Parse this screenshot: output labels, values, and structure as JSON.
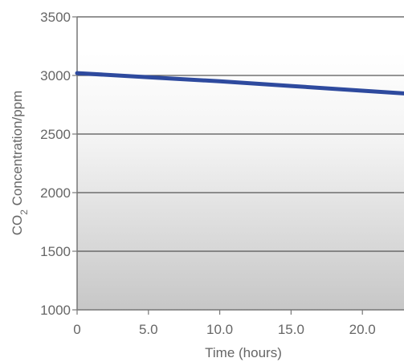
{
  "chart_data": {
    "type": "line",
    "title": "",
    "xlabel": "Time (hours)",
    "ylabel": {
      "prefix": "CO",
      "subscript": "2",
      "suffix": " Concentration/ppm"
    },
    "xlim": [
      0,
      25
    ],
    "ylim": [
      1000,
      3500
    ],
    "x_ticks": [
      0,
      5,
      10,
      15,
      20
    ],
    "x_tick_labels": [
      "0",
      "5.0",
      "10.0",
      "15.0",
      "20.0"
    ],
    "y_ticks": [
      1000,
      1500,
      2000,
      2500,
      3000,
      3500
    ],
    "y_tick_labels": [
      "1000",
      "1500",
      "2000",
      "2500",
      "3000",
      "3500"
    ],
    "grid": true,
    "series": [
      {
        "x": [
          0,
          5,
          10,
          15,
          20,
          25
        ],
        "y": [
          3020,
          2985,
          2950,
          2910,
          2870,
          2830
        ]
      }
    ],
    "colors": {
      "line": "#2e4a9e",
      "grid": "#555555",
      "axis": "#777777",
      "background_top": "#ffffff",
      "background_bottom": "#c7c7c7"
    }
  }
}
